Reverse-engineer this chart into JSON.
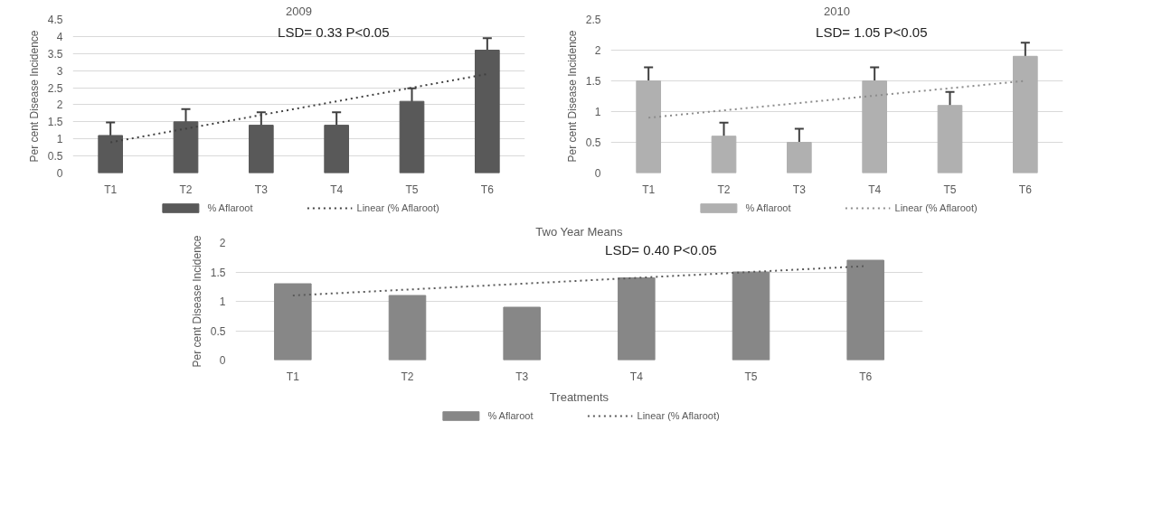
{
  "chart_data": [
    {
      "type": "bar",
      "title": "2009",
      "ylabel": "Per cent Disease Incidence",
      "categories": [
        "T1",
        "T2",
        "T3",
        "T4",
        "T5",
        "T6"
      ],
      "ylim": [
        0,
        4.5
      ],
      "yticks": [
        0,
        0.5,
        1,
        1.5,
        2,
        2.5,
        3,
        3.5,
        4,
        4.5
      ],
      "grid": "y",
      "legend": "bottom",
      "annotations": [
        "LSD= 0.33 P<0.05"
      ],
      "series": [
        {
          "name": "% Aflaroot",
          "color": "#595959",
          "values": [
            1.1,
            1.5,
            1.4,
            1.4,
            2.1,
            3.6
          ],
          "errors": [
            0.38,
            0.37,
            0.38,
            0.38,
            0.38,
            0.35
          ]
        },
        {
          "name": "Linear (% Aflaroot)",
          "type": "line",
          "line_style": "dotted",
          "color": "#404040",
          "x": [
            "T1",
            "T6"
          ],
          "values": [
            0.9,
            2.9
          ]
        }
      ]
    },
    {
      "type": "bar",
      "title": "2010",
      "ylabel": "Per cent Disease Incidence",
      "categories": [
        "T1",
        "T2",
        "T3",
        "T4",
        "T5",
        "T6"
      ],
      "ylim": [
        0,
        2.5
      ],
      "yticks": [
        0,
        0.5,
        1,
        1.5,
        2,
        2.5
      ],
      "grid": "y",
      "legend": "bottom",
      "annotations": [
        "LSD= 1.05 P<0.05"
      ],
      "series": [
        {
          "name": "% Aflaroot",
          "color": "#b0b0b0",
          "values": [
            1.5,
            0.6,
            0.5,
            1.5,
            1.1,
            1.9
          ],
          "errors": [
            0.22,
            0.22,
            0.22,
            0.22,
            0.22,
            0.22
          ]
        },
        {
          "name": "Linear (% Aflaroot)",
          "type": "line",
          "line_style": "dotted",
          "color": "#8c8c8c",
          "x": [
            "T1",
            "T6"
          ],
          "values": [
            0.9,
            1.5
          ]
        }
      ]
    },
    {
      "type": "bar",
      "title": "Two Year Means",
      "ylabel": "Per cent Disease Incidence",
      "xlabel": "Treatments",
      "categories": [
        "T1",
        "T2",
        "T3",
        "T4",
        "T5",
        "T6"
      ],
      "ylim": [
        0,
        2
      ],
      "yticks": [
        0,
        0.5,
        1,
        1.5,
        2
      ],
      "grid": "y",
      "legend": "bottom",
      "annotations": [
        "LSD= 0.40 P<0.05"
      ],
      "series": [
        {
          "name": "% Aflaroot",
          "color": "#878787",
          "values": [
            1.3,
            1.1,
            0.9,
            1.4,
            1.5,
            1.7
          ]
        },
        {
          "name": "Linear (% Aflaroot)",
          "type": "line",
          "line_style": "dotted",
          "color": "#5a5a5a",
          "x": [
            "T1",
            "T6"
          ],
          "values": [
            1.1,
            1.6
          ]
        }
      ]
    }
  ]
}
